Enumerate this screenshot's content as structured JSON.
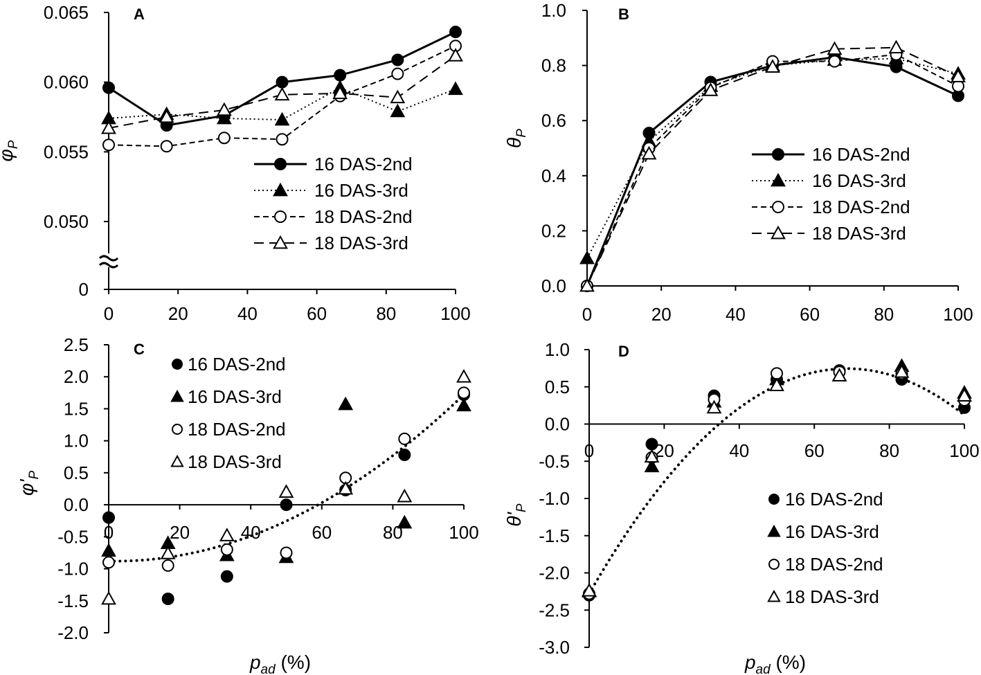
{
  "chart_data": [
    {
      "panel": "A",
      "type": "line",
      "ylabel": "φ",
      "ylabel_sub": "P",
      "x": [
        0,
        16.7,
        33.3,
        50,
        66.7,
        83.3,
        100
      ],
      "xlim": [
        0,
        100
      ],
      "xticks": [
        "0",
        "20",
        "40",
        "60",
        "80",
        "100"
      ],
      "ylim": [
        0.05,
        0.065
      ],
      "yticks": [
        "0.050",
        "0.055",
        "0.060",
        "0.065"
      ],
      "ybreak_tick": "0",
      "legend_position": "center-right",
      "series": [
        {
          "name": "16 DAS-2nd",
          "marker": "filled-circle",
          "line": "solid",
          "values": [
            0.0596,
            0.0569,
            0.0576,
            0.06,
            0.0605,
            0.0616,
            0.0636
          ]
        },
        {
          "name": "16 DAS-3rd",
          "marker": "filled-triangle",
          "line": "dotted",
          "values": [
            0.0574,
            0.0577,
            0.0574,
            0.0573,
            0.0596,
            0.0579,
            0.0595
          ]
        },
        {
          "name": "18 DAS-2nd",
          "marker": "open-circle",
          "line": "dashed",
          "values": [
            0.0555,
            0.0554,
            0.056,
            0.0559,
            0.059,
            0.0606,
            0.0626
          ]
        },
        {
          "name": "18 DAS-3rd",
          "marker": "open-triangle",
          "line": "longdash",
          "values": [
            0.0567,
            0.0575,
            0.058,
            0.0591,
            0.0592,
            0.0589,
            0.0619
          ]
        }
      ]
    },
    {
      "panel": "B",
      "type": "line",
      "ylabel": "θ",
      "ylabel_sub": "P",
      "x": [
        0,
        16.7,
        33.3,
        50,
        66.7,
        83.3,
        100
      ],
      "xlim": [
        0,
        100
      ],
      "xticks": [
        "0",
        "20",
        "40",
        "60",
        "80",
        "100"
      ],
      "ylim": [
        0,
        1
      ],
      "yticks": [
        "0.0",
        "0.2",
        "0.4",
        "0.6",
        "0.8",
        "1.0"
      ],
      "legend_position": "center-right",
      "series": [
        {
          "name": "16 DAS-2nd",
          "marker": "filled-circle",
          "line": "solid",
          "values": [
            0.0,
            0.555,
            0.74,
            0.8,
            0.83,
            0.795,
            0.69
          ]
        },
        {
          "name": "16 DAS-3rd",
          "marker": "filled-triangle",
          "line": "dotted",
          "values": [
            0.1,
            0.525,
            0.725,
            0.8,
            0.82,
            0.825,
            0.77
          ]
        },
        {
          "name": "18 DAS-2nd",
          "marker": "open-circle",
          "line": "dashed",
          "values": [
            0.0,
            0.5,
            0.72,
            0.815,
            0.815,
            0.84,
            0.725
          ]
        },
        {
          "name": "18 DAS-3rd",
          "marker": "open-triangle",
          "line": "longdash",
          "values": [
            0.0,
            0.48,
            0.71,
            0.795,
            0.86,
            0.865,
            0.76
          ]
        }
      ]
    },
    {
      "panel": "C",
      "type": "scatter",
      "ylabel": "φ'",
      "ylabel_sub": "P",
      "xlabel": "p",
      "xlabel_sub": "ad",
      "xlabel_unit": " (%)",
      "x": [
        0,
        16.7,
        33.3,
        50,
        66.7,
        83.3,
        100
      ],
      "xlim": [
        0,
        100
      ],
      "xticks": [
        "0",
        "20",
        "40",
        "60",
        "80",
        "100"
      ],
      "ylim": [
        -2,
        2.5
      ],
      "yticks": [
        "-2.0",
        "-1.5",
        "-1.0",
        "-0.5",
        "0.0",
        "0.5",
        "1.0",
        "1.5",
        "2.0",
        "2.5"
      ],
      "legend_position": "top-left",
      "trendline": {
        "type": "polynomial",
        "coefficients": [
          -0.88,
          -0.001,
          0.00027
        ]
      },
      "series": [
        {
          "name": "16 DAS-2nd",
          "marker": "filled-circle",
          "values": [
            -0.2,
            -1.47,
            -1.12,
            0.0,
            0.23,
            0.78,
            1.72
          ]
        },
        {
          "name": "16 DAS-3rd",
          "marker": "filled-triangle",
          "values": [
            -0.72,
            -0.6,
            -0.79,
            -0.82,
            1.57,
            -0.28,
            1.55
          ]
        },
        {
          "name": "18 DAS-2nd",
          "marker": "open-circle",
          "values": [
            -0.9,
            -0.95,
            -0.7,
            -0.75,
            0.42,
            1.03,
            1.75
          ]
        },
        {
          "name": "18 DAS-3rd",
          "marker": "open-triangle",
          "values": [
            -1.47,
            -0.76,
            -0.48,
            0.2,
            0.25,
            0.13,
            2.0
          ]
        }
      ]
    },
    {
      "panel": "D",
      "type": "scatter",
      "ylabel": "θ'",
      "ylabel_sub": "P",
      "xlabel": "p",
      "xlabel_sub": "ad",
      "xlabel_unit": " (%)",
      "x": [
        0,
        16.7,
        33.3,
        50,
        66.7,
        83.3,
        100
      ],
      "xlim": [
        0,
        100
      ],
      "xticks": [
        "0",
        "20",
        "40",
        "60",
        "80",
        "100"
      ],
      "ylim": [
        -3,
        1
      ],
      "yticks": [
        "-3.0",
        "-2.5",
        "-2.0",
        "-1.5",
        "-1.0",
        "-0.5",
        "0.0",
        "0.5",
        "1.0"
      ],
      "legend_position": "bottom-center",
      "trendline": {
        "type": "polynomial",
        "coefficients": [
          -2.28,
          0.088,
          -0.00064
        ]
      },
      "series": [
        {
          "name": "16 DAS-2nd",
          "marker": "filled-circle",
          "values": [
            -2.3,
            -0.27,
            0.38,
            0.6,
            0.72,
            0.6,
            0.22
          ]
        },
        {
          "name": "16 DAS-3rd",
          "marker": "filled-triangle",
          "values": [
            -2.25,
            -0.57,
            0.3,
            0.6,
            0.65,
            0.78,
            0.42
          ]
        },
        {
          "name": "18 DAS-2nd",
          "marker": "open-circle",
          "values": [
            -2.28,
            -0.45,
            0.33,
            0.68,
            0.7,
            0.68,
            0.32
          ]
        },
        {
          "name": "18 DAS-3rd",
          "marker": "open-triangle",
          "values": [
            -2.24,
            -0.44,
            0.22,
            0.52,
            0.65,
            0.7,
            0.38
          ]
        }
      ]
    }
  ]
}
